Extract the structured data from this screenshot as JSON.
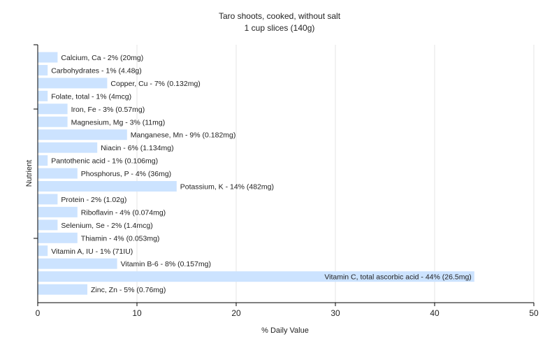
{
  "chart_data": {
    "type": "bar",
    "orientation": "horizontal",
    "title": "Taro shoots, cooked, without salt",
    "subtitle": "1 cup slices (140g)",
    "xlabel": "% Daily Value",
    "ylabel": "Nutrient",
    "xlim": [
      0,
      50
    ],
    "xticks": [
      "0",
      "10",
      "20",
      "30",
      "40",
      "50"
    ],
    "grid": true,
    "bar_color": "#cce3ff",
    "categories": [
      "Calcium, Ca",
      "Carbohydrates",
      "Copper, Cu",
      "Folate, total",
      "Iron, Fe",
      "Magnesium, Mg",
      "Manganese, Mn",
      "Niacin",
      "Pantothenic acid",
      "Phosphorus, P",
      "Potassium, K",
      "Protein",
      "Riboflavin",
      "Selenium, Se",
      "Thiamin",
      "Vitamin A, IU",
      "Vitamin B-6",
      "Vitamin C, total ascorbic acid",
      "Zinc, Zn"
    ],
    "values": [
      2,
      1,
      7,
      1,
      3,
      3,
      9,
      6,
      1,
      4,
      14,
      2,
      4,
      2,
      4,
      1,
      8,
      44,
      5
    ],
    "labels": [
      "Calcium, Ca - 2% (20mg)",
      "Carbohydrates - 1% (4.48g)",
      "Copper, Cu - 7% (0.132mg)",
      "Folate, total - 1% (4mcg)",
      "Iron, Fe - 3% (0.57mg)",
      "Magnesium, Mg - 3% (11mg)",
      "Manganese, Mn - 9% (0.182mg)",
      "Niacin - 6% (1.134mg)",
      "Pantothenic acid - 1% (0.106mg)",
      "Phosphorus, P - 4% (36mg)",
      "Potassium, K - 14% (482mg)",
      "Protein - 2% (1.02g)",
      "Riboflavin - 4% (0.074mg)",
      "Selenium, Se - 2% (1.4mcg)",
      "Thiamin - 4% (0.053mg)",
      "Vitamin A, IU - 1% (71IU)",
      "Vitamin B-6 - 8% (0.157mg)",
      "Vitamin C, total ascorbic acid - 44% (26.5mg)",
      "Zinc, Zn - 5% (0.76mg)"
    ]
  }
}
